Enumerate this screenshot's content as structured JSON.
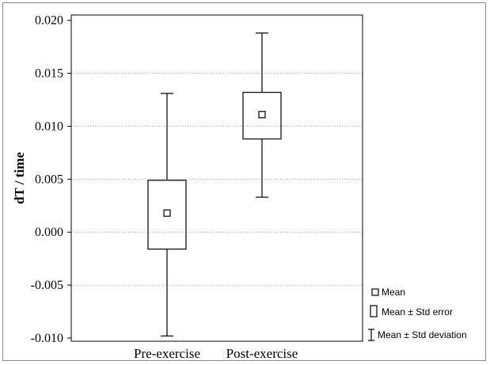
{
  "chart_data": {
    "type": "box",
    "title": "",
    "xlabel": "",
    "ylabel": "dT / time",
    "ylim": [
      -0.0103,
      0.0205
    ],
    "yticks": [
      "0.020",
      "0.015",
      "0.010",
      "0.005",
      "0.000",
      "-0.005",
      "-0.010"
    ],
    "ytick_values": [
      0.02,
      0.015,
      0.01,
      0.005,
      0.0,
      -0.005,
      -0.01
    ],
    "grid": true,
    "categories": [
      "Pre-exercise",
      "Post-exercise"
    ],
    "series": [
      {
        "category": "Pre-exercise",
        "mean": 0.0018,
        "se_low": -0.0016,
        "se_high": 0.0049,
        "sd_low": -0.0098,
        "sd_high": 0.0131
      },
      {
        "category": "Post-exercise",
        "mean": 0.0111,
        "se_low": 0.0088,
        "se_high": 0.0132,
        "sd_low": 0.0033,
        "sd_high": 0.0188
      }
    ],
    "legend": {
      "position": "bottom-right",
      "items": [
        "Mean",
        "Mean ± Std error",
        "Mean ± Std deviation"
      ]
    }
  }
}
